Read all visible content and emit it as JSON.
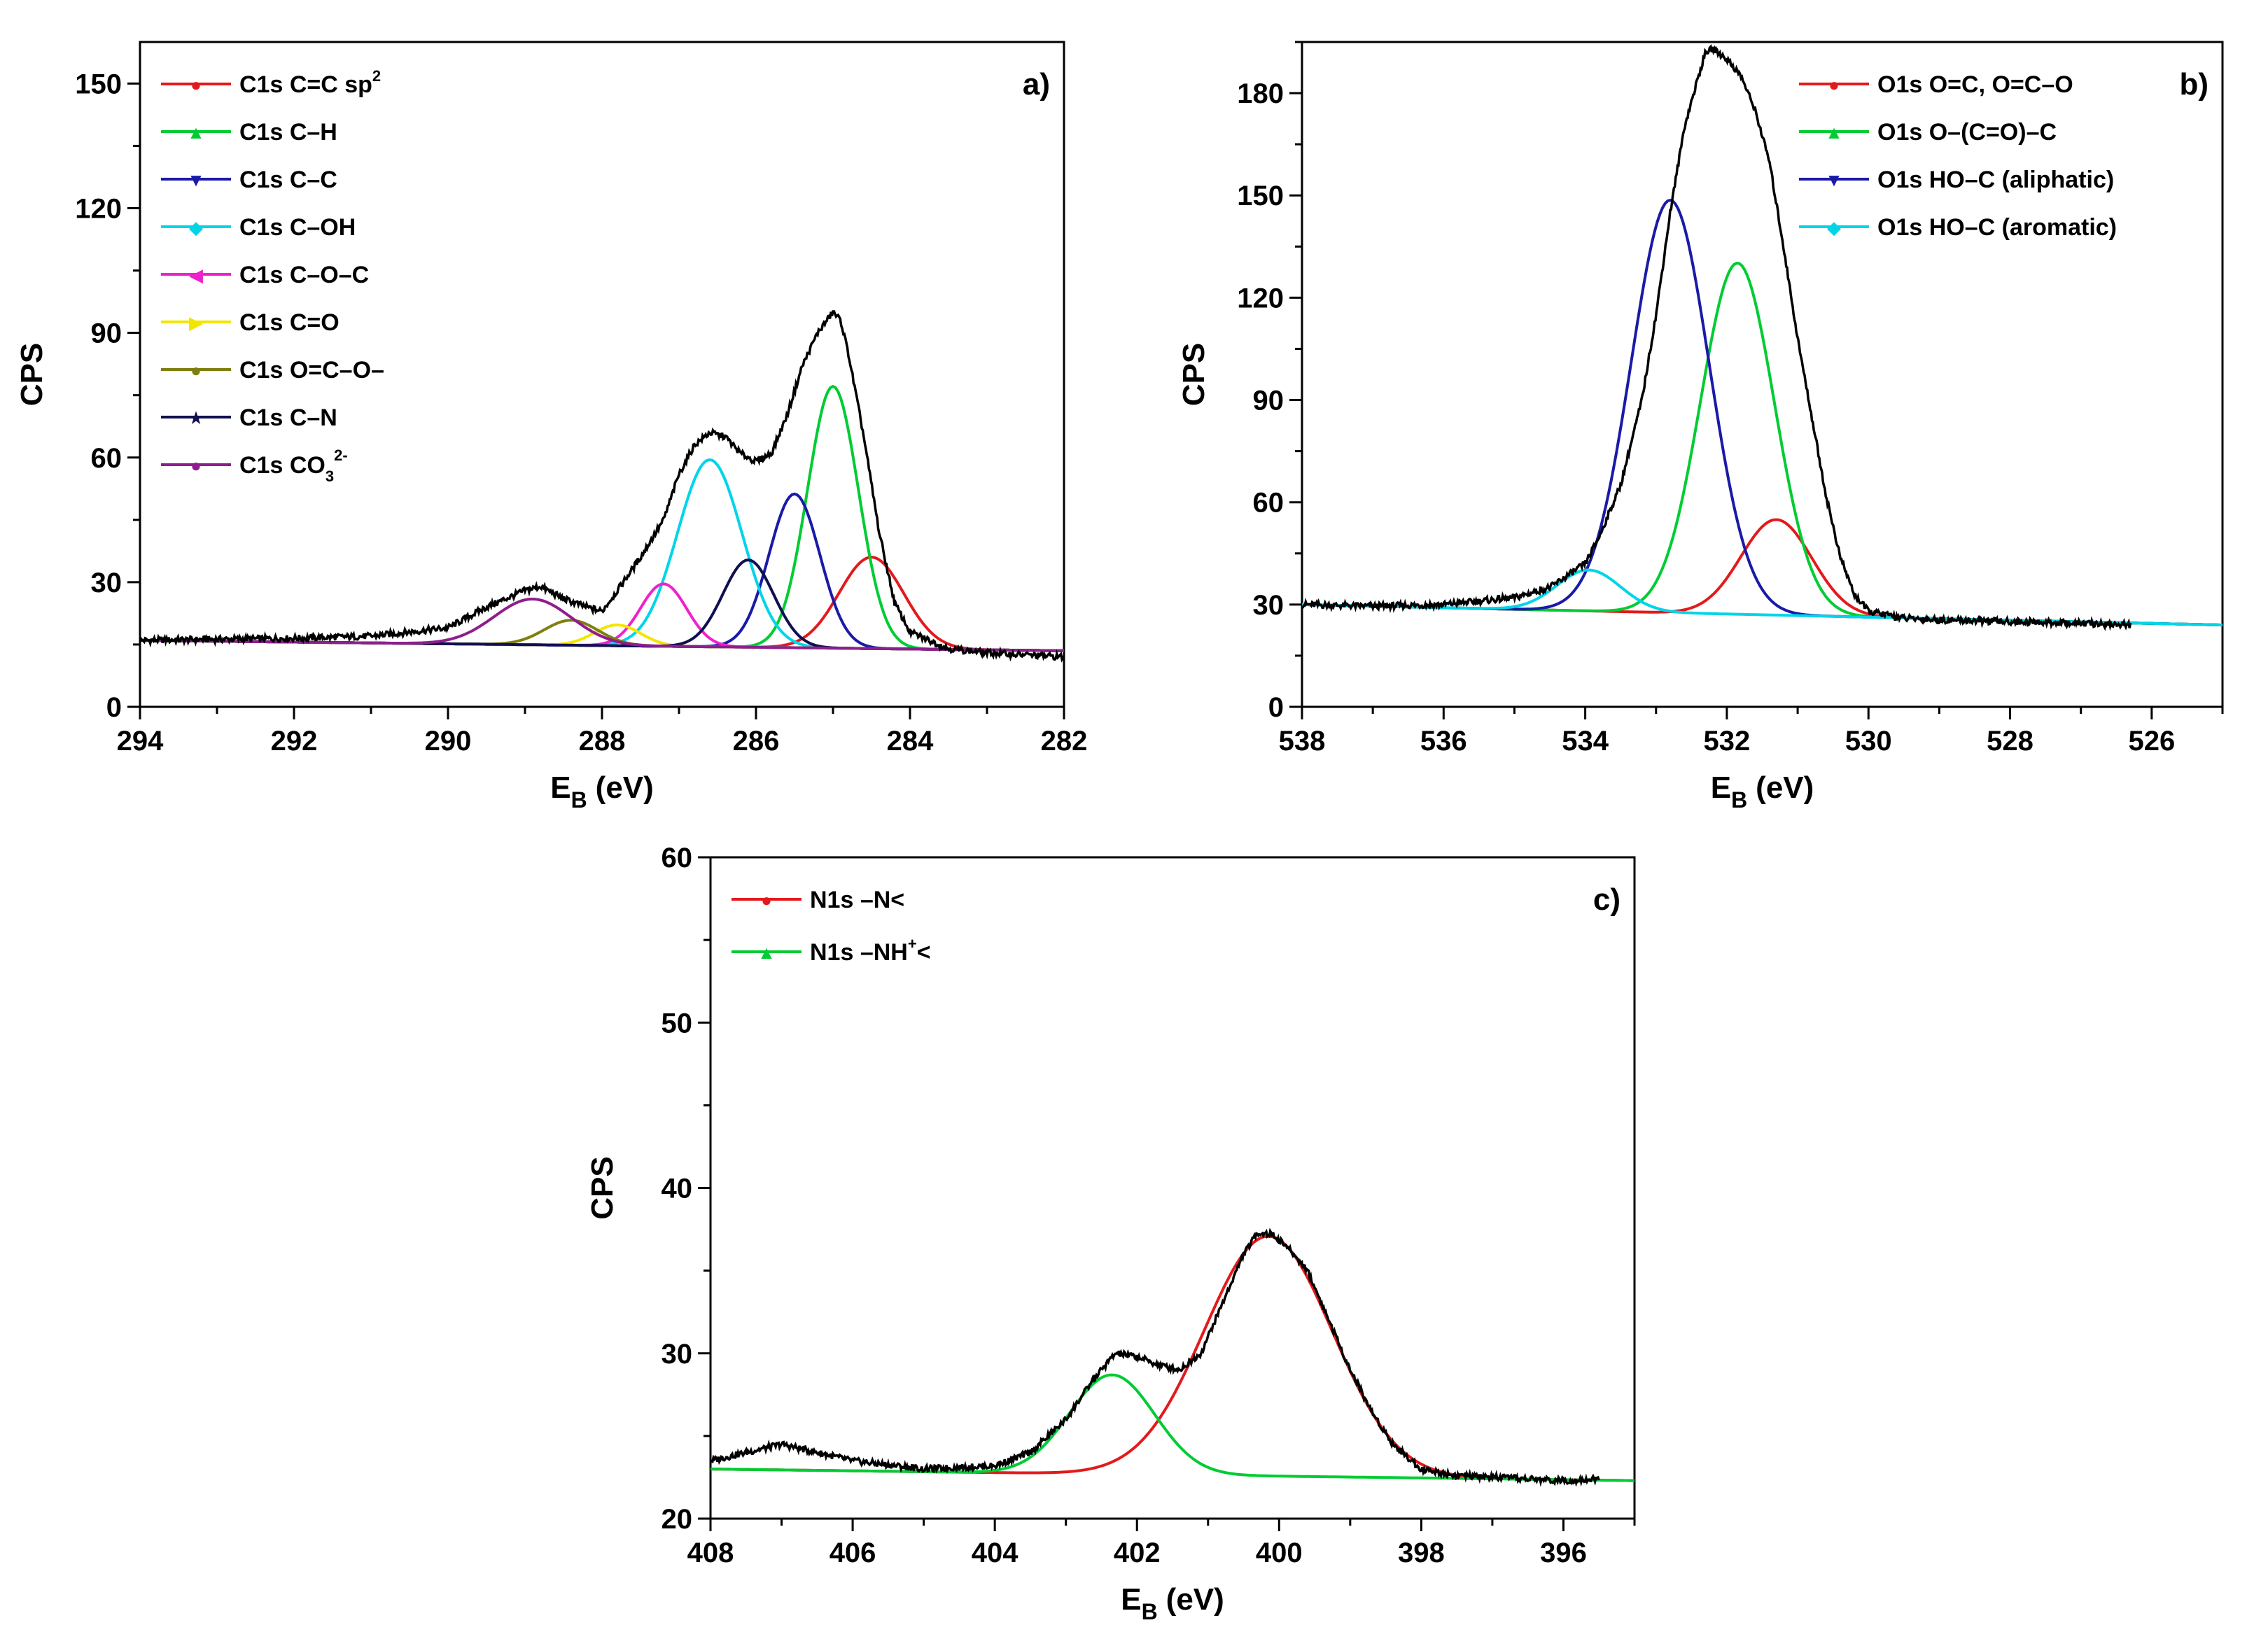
{
  "chart_data": [
    {
      "type": "line",
      "panel_label": "a)",
      "xlabel_main": "E",
      "xlabel_sub": "B",
      "xlabel_unit": "(eV)",
      "ylabel": "CPS",
      "xlim": [
        294,
        282
      ],
      "ylim": [
        0,
        160
      ],
      "xticks": [
        "294",
        "292",
        "290",
        "288",
        "286",
        "284",
        "282"
      ],
      "yticks": [
        "0",
        "30",
        "60",
        "90",
        "120",
        "150"
      ],
      "legend_position": "top-left",
      "measured": {
        "color": "#000000",
        "points": [
          [
            294,
            16
          ],
          [
            292,
            16.5
          ],
          [
            291,
            17
          ],
          [
            290,
            19
          ],
          [
            289.5,
            24
          ],
          [
            289,
            28
          ],
          [
            288.8,
            29
          ],
          [
            288.5,
            26
          ],
          [
            288.2,
            24
          ],
          [
            288,
            23
          ],
          [
            287.8,
            28
          ],
          [
            287.5,
            36
          ],
          [
            287.2,
            45
          ],
          [
            287,
            56
          ],
          [
            286.8,
            63
          ],
          [
            286.6,
            66
          ],
          [
            286.4,
            65
          ],
          [
            286.2,
            61
          ],
          [
            286,
            59
          ],
          [
            285.8,
            61
          ],
          [
            285.6,
            70
          ],
          [
            285.4,
            82
          ],
          [
            285.2,
            90
          ],
          [
            285,
            95
          ],
          [
            284.9,
            93
          ],
          [
            284.8,
            85
          ],
          [
            284.6,
            65
          ],
          [
            284.4,
            42
          ],
          [
            284.2,
            25
          ],
          [
            284,
            18
          ],
          [
            283.5,
            14
          ],
          [
            283,
            13
          ],
          [
            282,
            12
          ]
        ]
      },
      "baseline": {
        "start": 16,
        "end": 13.5
      },
      "components": [
        {
          "label_main": "C1s C=C sp",
          "label_sup": "2",
          "label_sub": "",
          "label_tail": "",
          "color": "#e31a1c",
          "marker": "●",
          "center": 284.5,
          "height": 22,
          "width": 0.42
        },
        {
          "label_main": "C1s C–H",
          "label_sup": "",
          "label_sub": "",
          "label_tail": "",
          "color": "#00cc33",
          "marker": "▲",
          "center": 285.0,
          "height": 63,
          "width": 0.33
        },
        {
          "label_main": "C1s C–C",
          "label_sup": "",
          "label_sub": "",
          "label_tail": "",
          "color": "#1a1aa8",
          "marker": "▼",
          "center": 285.5,
          "height": 37,
          "width": 0.33
        },
        {
          "label_main": "C1s C–OH",
          "label_sup": "",
          "label_sub": "",
          "label_tail": "",
          "color": "#00d5e8",
          "marker": "◆",
          "center": 286.6,
          "height": 45,
          "width": 0.42
        },
        {
          "label_main": "C1s C–O–C",
          "label_sup": "",
          "label_sub": "",
          "label_tail": "",
          "color": "#ee22cc",
          "marker": "◀",
          "center": 287.2,
          "height": 15,
          "width": 0.3
        },
        {
          "label_main": "C1s C=O",
          "label_sup": "",
          "label_sub": "",
          "label_tail": "",
          "color": "#f2e600",
          "marker": "▶",
          "center": 287.8,
          "height": 5,
          "width": 0.3
        },
        {
          "label_main": "C1s O=C–O–",
          "label_sup": "",
          "label_sub": "",
          "label_tail": "",
          "color": "#7f7f10",
          "marker": "●",
          "center": 288.4,
          "height": 6,
          "width": 0.35
        },
        {
          "label_main": "C1s C–N",
          "label_sup": "",
          "label_sub": "",
          "label_tail": "",
          "color": "#101050",
          "marker": "★",
          "center": 286.1,
          "height": 21,
          "width": 0.33
        },
        {
          "label_main": "C1s CO",
          "label_sup": "2-",
          "label_sub": "3",
          "label_tail": "",
          "color": "#8e1e8e",
          "marker": "●",
          "center": 288.9,
          "height": 11,
          "width": 0.5
        }
      ]
    },
    {
      "type": "line",
      "panel_label": "b)",
      "xlabel_main": "E",
      "xlabel_sub": "B",
      "xlabel_unit": "(eV)",
      "ylabel": "CPS",
      "xlim": [
        538,
        525
      ],
      "ylim": [
        0,
        195
      ],
      "xticks": [
        "538",
        "536",
        "534",
        "532",
        "530",
        "528",
        "526"
      ],
      "yticks": [
        "0",
        "30",
        "60",
        "90",
        "120",
        "150",
        "180"
      ],
      "legend_position": "top-right",
      "measured": {
        "color": "#000000",
        "points": [
          [
            538,
            30
          ],
          [
            537,
            29.5
          ],
          [
            536,
            30
          ],
          [
            535,
            32
          ],
          [
            534.5,
            35
          ],
          [
            534,
            42
          ],
          [
            533.8,
            50
          ],
          [
            533.5,
            65
          ],
          [
            533.2,
            90
          ],
          [
            533,
            115
          ],
          [
            532.8,
            145
          ],
          [
            532.6,
            170
          ],
          [
            532.4,
            185
          ],
          [
            532.3,
            192
          ],
          [
            532.2,
            193
          ],
          [
            532,
            190
          ],
          [
            531.8,
            185
          ],
          [
            531.6,
            175
          ],
          [
            531.4,
            160
          ],
          [
            531.2,
            135
          ],
          [
            531,
            108
          ],
          [
            530.8,
            85
          ],
          [
            530.6,
            62
          ],
          [
            530.4,
            44
          ],
          [
            530.2,
            33
          ],
          [
            530,
            28
          ],
          [
            529.5,
            26
          ],
          [
            529,
            25.5
          ],
          [
            528,
            25
          ],
          [
            527,
            24.5
          ],
          [
            526.3,
            24
          ]
        ]
      },
      "baseline": {
        "start": 30,
        "end": 24
      },
      "components": [
        {
          "label_main": "O1s O=C, O=C–O",
          "label_sup": "",
          "label_sub": "",
          "label_tail": "",
          "color": "#e31a1c",
          "marker": "●",
          "center": 531.3,
          "height": 28,
          "width": 0.5
        },
        {
          "label_main": "O1s O–(C=O)–C",
          "label_sup": "",
          "label_sub": "",
          "label_tail": "",
          "color": "#00cc33",
          "marker": "▲",
          "center": 531.85,
          "height": 103,
          "width": 0.52
        },
        {
          "label_main": "O1s HO–C (aliphatic)",
          "label_sup": "",
          "label_sub": "",
          "label_tail": "",
          "color": "#1a1aa8",
          "marker": "▼",
          "center": 532.8,
          "height": 121,
          "width": 0.55
        },
        {
          "label_main": "O1s HO–C (aromatic)",
          "label_sup": "",
          "label_sub": "",
          "label_tail": "",
          "color": "#00d5e8",
          "marker": "◆",
          "center": 533.95,
          "height": 12,
          "width": 0.45
        }
      ]
    },
    {
      "type": "line",
      "panel_label": "c)",
      "xlabel_main": "E",
      "xlabel_sub": "B",
      "xlabel_unit": "(eV)",
      "ylabel": "CPS",
      "xlim": [
        408,
        395
      ],
      "ylim": [
        20,
        60
      ],
      "xticks": [
        "408",
        "406",
        "404",
        "402",
        "400",
        "398",
        "396"
      ],
      "yticks": [
        "20",
        "30",
        "40",
        "50",
        "60"
      ],
      "legend_position": "top-left",
      "measured": {
        "color": "#000000",
        "points": [
          [
            408,
            23.5
          ],
          [
            407.5,
            24
          ],
          [
            407,
            24.5
          ],
          [
            406.5,
            24
          ],
          [
            406,
            23.5
          ],
          [
            405,
            23
          ],
          [
            404,
            23.2
          ],
          [
            403.5,
            24
          ],
          [
            403,
            26
          ],
          [
            402.6,
            28.5
          ],
          [
            402.3,
            30
          ],
          [
            402,
            29.8
          ],
          [
            401.7,
            29.3
          ],
          [
            401.4,
            29
          ],
          [
            401.1,
            30
          ],
          [
            400.8,
            33
          ],
          [
            400.5,
            36
          ],
          [
            400.3,
            37.3
          ],
          [
            400.1,
            37.2
          ],
          [
            399.9,
            36.5
          ],
          [
            399.6,
            35
          ],
          [
            399.3,
            32
          ],
          [
            399,
            29
          ],
          [
            398.7,
            26.5
          ],
          [
            398.4,
            24.5
          ],
          [
            398,
            23
          ],
          [
            397.5,
            22.6
          ],
          [
            397,
            22.5
          ],
          [
            396,
            22.3
          ],
          [
            395.5,
            22.4
          ]
        ]
      },
      "baseline": {
        "start": 23,
        "end": 22.3
      },
      "components": [
        {
          "label_main": "N1s –N<",
          "label_sup": "",
          "label_sub": "",
          "label_tail": "",
          "color": "#e31a1c",
          "marker": "●",
          "center": 400.15,
          "height": 14.5,
          "width": 0.9
        },
        {
          "label_main": "N1s –NH",
          "label_sup": "+",
          "label_sub": "",
          "label_tail": "<",
          "color": "#00cc33",
          "marker": "▲",
          "center": 402.35,
          "height": 6,
          "width": 0.6
        }
      ]
    }
  ]
}
